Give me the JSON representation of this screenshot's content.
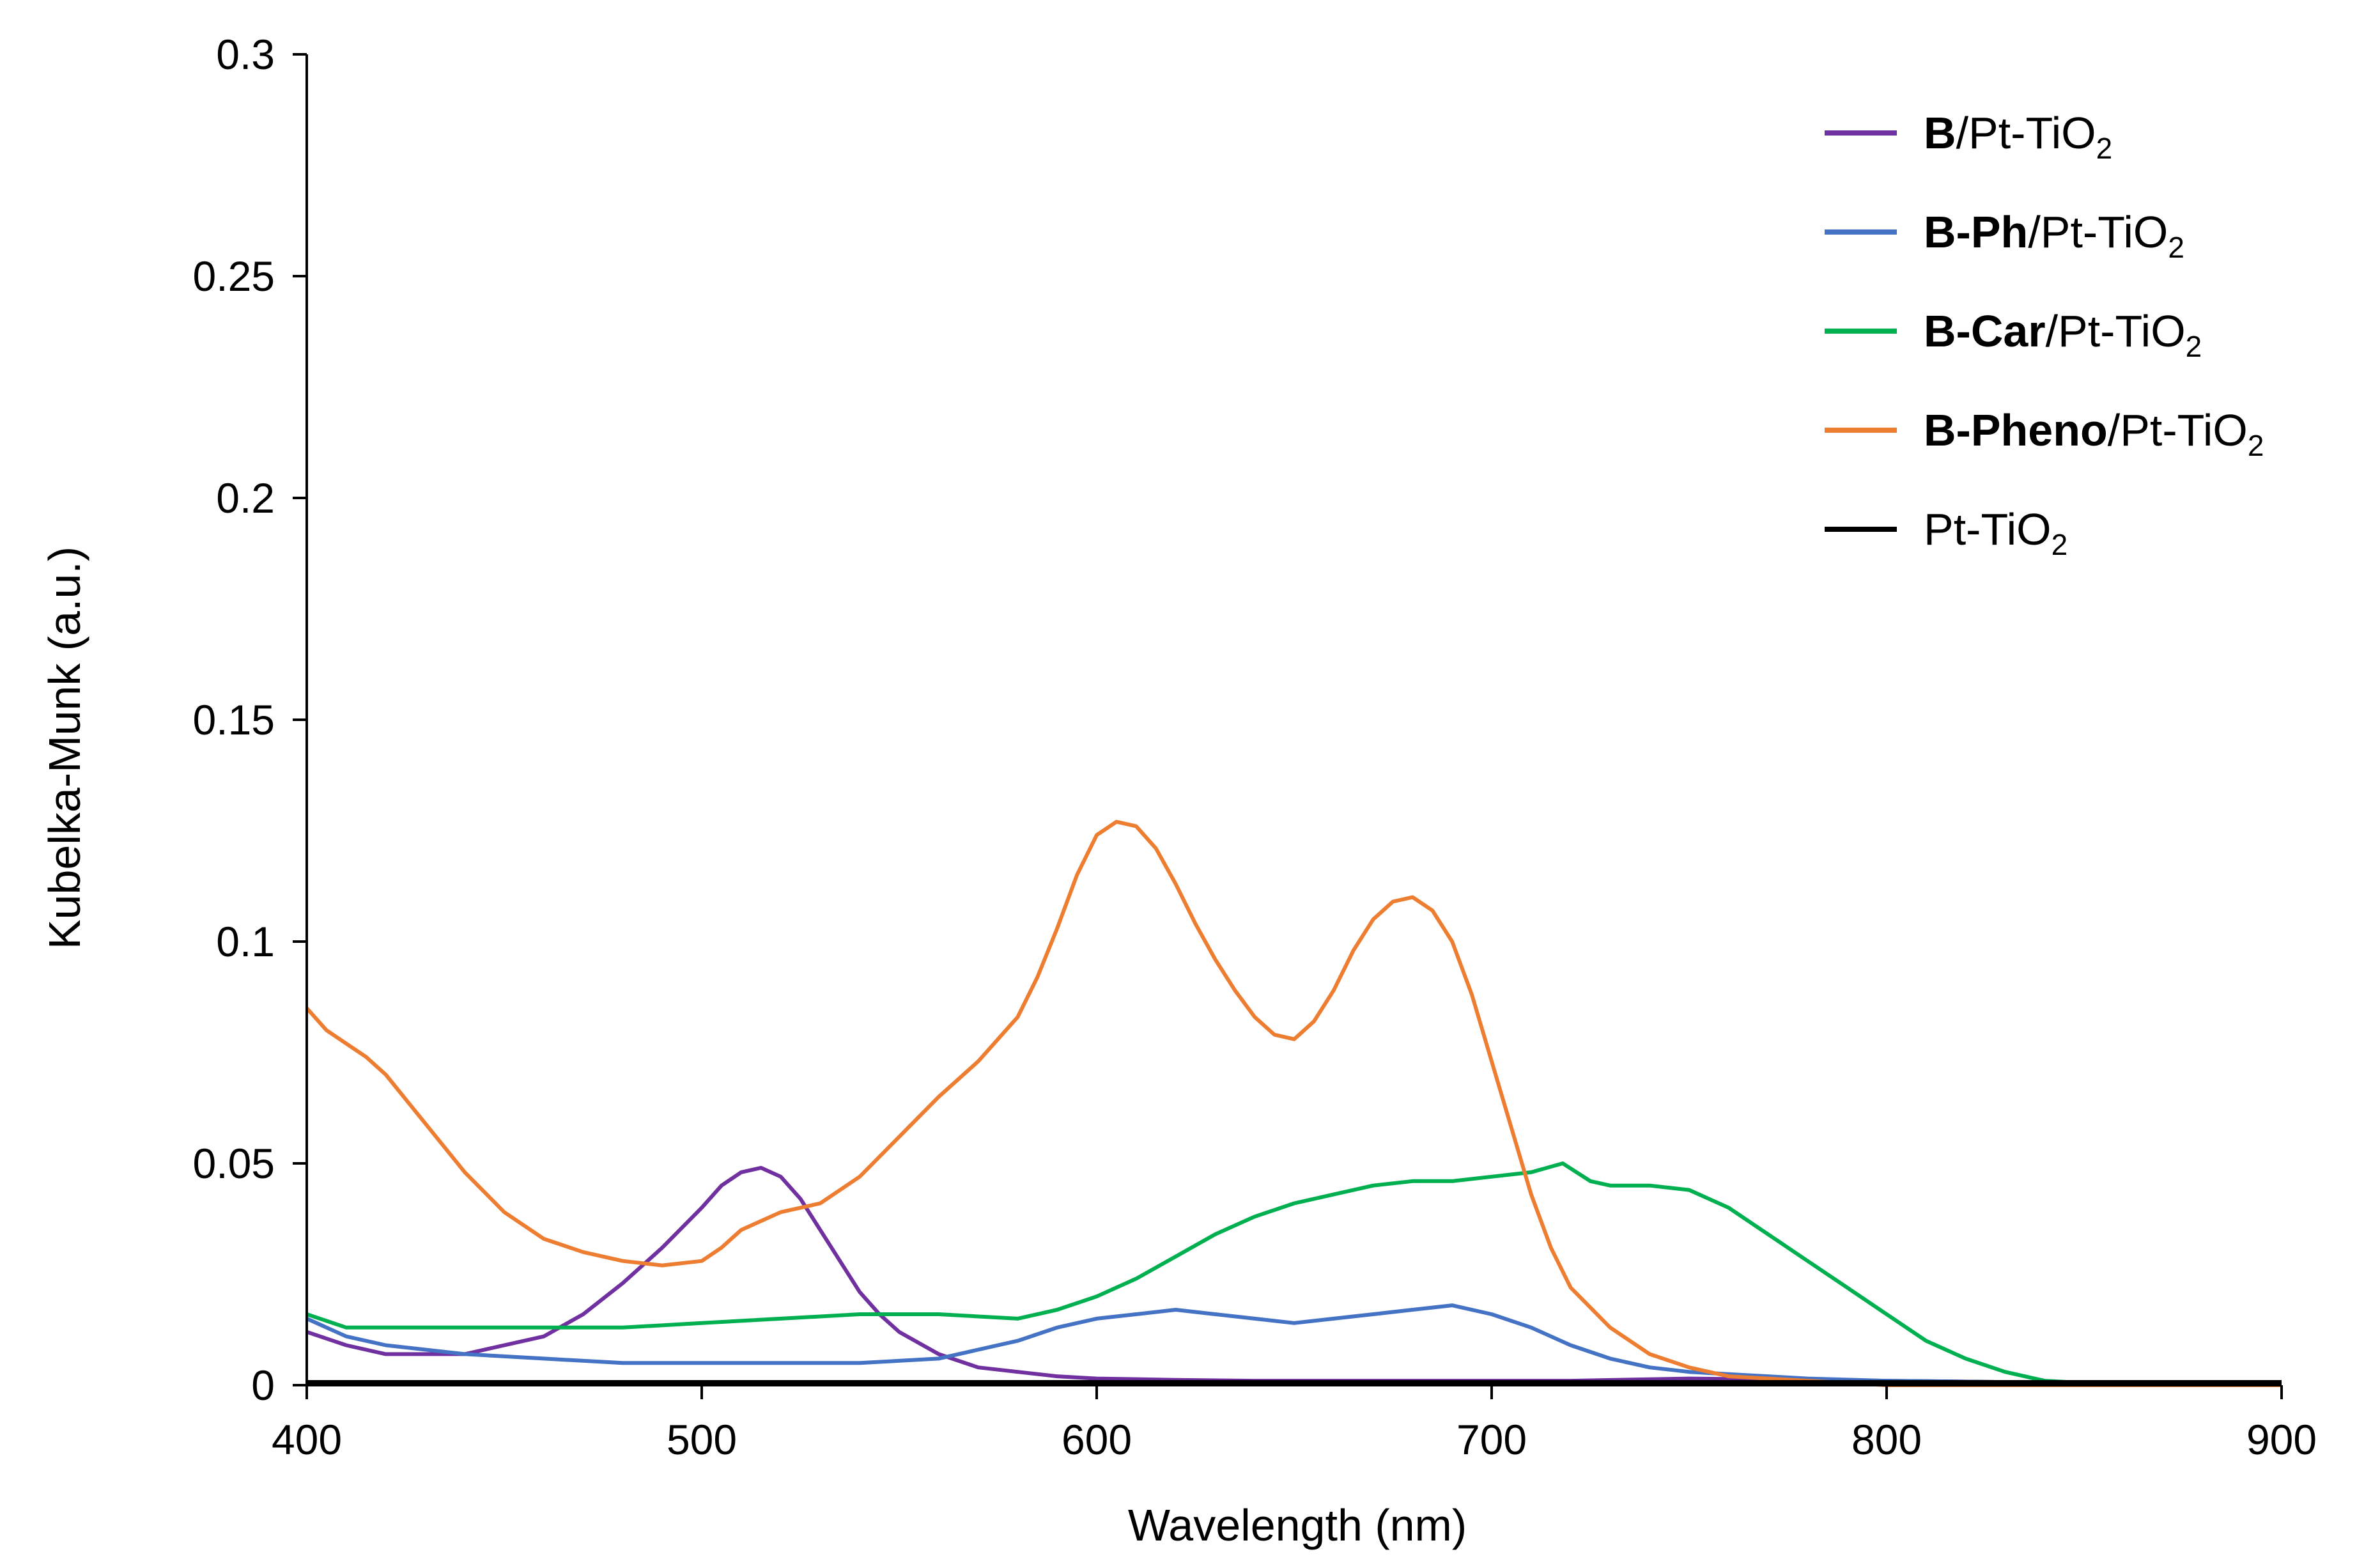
{
  "chart_data": {
    "type": "line",
    "xlabel": "Wavelength (nm)",
    "ylabel": "Kubelka-Munk (a.u.)",
    "xlim": [
      400,
      900
    ],
    "ylim": [
      0,
      0.3
    ],
    "x_ticks": [
      400,
      500,
      600,
      700,
      800,
      900
    ],
    "x_tick_labels": [
      "400",
      "500",
      "600",
      "700",
      "800",
      "900"
    ],
    "y_ticks": [
      0,
      0.05,
      0.1,
      0.15,
      0.2,
      0.25,
      0.3
    ],
    "y_tick_labels": [
      "0",
      "0.05",
      "0.1",
      "0.15",
      "0.2",
      "0.25",
      "0.3"
    ],
    "grid": false,
    "legend_position": "top-right",
    "series": [
      {
        "name": "B/Pt-TiO2",
        "label_bold": "B",
        "label_rest": "/Pt-TiO",
        "label_sub": "2",
        "color": "#7030A0",
        "x": [
          400,
          410,
          420,
          440,
          460,
          470,
          480,
          490,
          500,
          505,
          510,
          515,
          520,
          525,
          530,
          535,
          540,
          545,
          550,
          560,
          570,
          580,
          590,
          600,
          620,
          640,
          660,
          680,
          700,
          720,
          750,
          800,
          850,
          900
        ],
        "y": [
          0.012,
          0.009,
          0.007,
          0.007,
          0.011,
          0.016,
          0.023,
          0.031,
          0.04,
          0.045,
          0.048,
          0.049,
          0.047,
          0.042,
          0.035,
          0.028,
          0.021,
          0.016,
          0.012,
          0.007,
          0.004,
          0.003,
          0.002,
          0.0015,
          0.0012,
          0.001,
          0.001,
          0.001,
          0.001,
          0.001,
          0.0015,
          0.001,
          0.0005,
          0
        ]
      },
      {
        "name": "B-Ph/Pt-TiO2",
        "label_bold": "B-Ph",
        "label_rest": "/Pt-TiO",
        "label_sub": "2",
        "color": "#4472C4",
        "x": [
          400,
          410,
          420,
          440,
          460,
          480,
          500,
          520,
          540,
          560,
          580,
          590,
          600,
          610,
          620,
          630,
          640,
          650,
          660,
          670,
          680,
          690,
          700,
          710,
          720,
          730,
          740,
          750,
          760,
          770,
          780,
          800,
          850,
          900
        ],
        "y": [
          0.015,
          0.011,
          0.009,
          0.007,
          0.006,
          0.005,
          0.005,
          0.005,
          0.005,
          0.006,
          0.01,
          0.013,
          0.015,
          0.016,
          0.017,
          0.016,
          0.015,
          0.014,
          0.015,
          0.016,
          0.017,
          0.018,
          0.016,
          0.013,
          0.009,
          0.006,
          0.004,
          0.003,
          0.0025,
          0.002,
          0.0015,
          0.001,
          0.0005,
          0
        ]
      },
      {
        "name": "B-Car/Pt-TiO2",
        "label_bold": "B-Car",
        "label_rest": "/Pt-TiO",
        "label_sub": "2",
        "color": "#00B050",
        "x": [
          400,
          410,
          420,
          450,
          480,
          500,
          520,
          540,
          560,
          580,
          590,
          600,
          610,
          620,
          630,
          640,
          650,
          660,
          670,
          680,
          690,
          700,
          710,
          718,
          725,
          730,
          740,
          750,
          760,
          770,
          780,
          790,
          800,
          810,
          820,
          830,
          840,
          850,
          860,
          900
        ],
        "y": [
          0.016,
          0.013,
          0.013,
          0.013,
          0.013,
          0.014,
          0.015,
          0.016,
          0.016,
          0.015,
          0.017,
          0.02,
          0.024,
          0.029,
          0.034,
          0.038,
          0.041,
          0.043,
          0.045,
          0.046,
          0.046,
          0.047,
          0.048,
          0.05,
          0.046,
          0.045,
          0.045,
          0.044,
          0.04,
          0.034,
          0.028,
          0.022,
          0.016,
          0.01,
          0.006,
          0.003,
          0.001,
          0.0005,
          0,
          0
        ]
      },
      {
        "name": "B-Pheno/Pt-TiO2",
        "label_bold": "B-Pheno",
        "label_rest": "/Pt-TiO",
        "label_sub": "2",
        "color": "#ED7D31",
        "x": [
          400,
          405,
          410,
          415,
          420,
          430,
          440,
          450,
          460,
          470,
          480,
          490,
          500,
          505,
          510,
          520,
          530,
          540,
          550,
          560,
          570,
          580,
          585,
          590,
          595,
          600,
          605,
          610,
          615,
          620,
          625,
          630,
          635,
          640,
          645,
          650,
          655,
          660,
          665,
          670,
          675,
          680,
          685,
          690,
          695,
          700,
          705,
          710,
          715,
          720,
          730,
          740,
          750,
          760,
          770,
          780,
          790,
          800,
          820,
          850,
          900
        ],
        "y": [
          0.085,
          0.08,
          0.077,
          0.074,
          0.07,
          0.059,
          0.048,
          0.039,
          0.033,
          0.03,
          0.028,
          0.027,
          0.028,
          0.031,
          0.035,
          0.039,
          0.041,
          0.047,
          0.056,
          0.065,
          0.073,
          0.083,
          0.092,
          0.103,
          0.115,
          0.124,
          0.127,
          0.126,
          0.121,
          0.113,
          0.104,
          0.096,
          0.089,
          0.083,
          0.079,
          0.078,
          0.082,
          0.089,
          0.098,
          0.105,
          0.109,
          0.11,
          0.107,
          0.1,
          0.088,
          0.073,
          0.058,
          0.043,
          0.031,
          0.022,
          0.013,
          0.007,
          0.004,
          0.002,
          0.0015,
          0.001,
          0.0005,
          0,
          0,
          0,
          0
        ]
      },
      {
        "name": "Pt-TiO2",
        "label_bold": "",
        "label_rest": "Pt-TiO",
        "label_sub": "2",
        "color": "#000000",
        "x": [
          400,
          500,
          600,
          700,
          800,
          900
        ],
        "y": [
          0.0005,
          0.0005,
          0.0005,
          0.0005,
          0.0005,
          0.0005
        ]
      }
    ]
  }
}
